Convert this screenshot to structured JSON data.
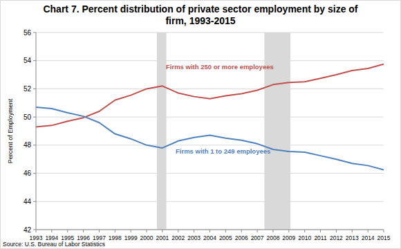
{
  "chart_data": {
    "type": "line",
    "title": "Chart 7. Percent distribution of private sector employment by size of firm, 1993-2015",
    "y_label": "Percent of Employment",
    "source": "Source: U.S. Bureau of Labor Statistics",
    "x": [
      1993,
      1994,
      1995,
      1996,
      1997,
      1998,
      1999,
      2000,
      2001,
      2002,
      2003,
      2004,
      2005,
      2006,
      2007,
      2008,
      2009,
      2010,
      2011,
      2012,
      2013,
      2014,
      2015
    ],
    "xlim": [
      1993,
      2015
    ],
    "xticks": [
      1993,
      1994,
      1995,
      1996,
      1997,
      1998,
      1999,
      2000,
      2001,
      2002,
      2003,
      2004,
      2005,
      2006,
      2007,
      2008,
      2009,
      2010,
      2011,
      2012,
      2013,
      2014,
      2015
    ],
    "ylim": [
      42,
      56
    ],
    "yticks": [
      42,
      44,
      46,
      48,
      50,
      52,
      54,
      56
    ],
    "grid": true,
    "shaded_ranges": [
      [
        2000.65,
        2001.25
      ],
      [
        2007.45,
        2009.1
      ]
    ],
    "series": [
      {
        "name": "Firms with 250 or more employees",
        "color": "#c0504d",
        "values": [
          49.3,
          49.4,
          49.7,
          49.95,
          50.4,
          51.2,
          51.55,
          52.0,
          52.2,
          51.7,
          51.45,
          51.3,
          51.5,
          51.65,
          51.9,
          52.3,
          52.45,
          52.5,
          52.75,
          53.0,
          53.3,
          53.45,
          53.75
        ]
      },
      {
        "name": "Firms with 1 to 249 employees",
        "color": "#4f81bd",
        "values": [
          50.7,
          50.6,
          50.3,
          50.05,
          49.6,
          48.8,
          48.45,
          48.0,
          47.8,
          48.3,
          48.55,
          48.7,
          48.5,
          48.35,
          48.1,
          47.7,
          47.55,
          47.5,
          47.25,
          47.0,
          46.7,
          46.55,
          46.25
        ]
      }
    ]
  }
}
